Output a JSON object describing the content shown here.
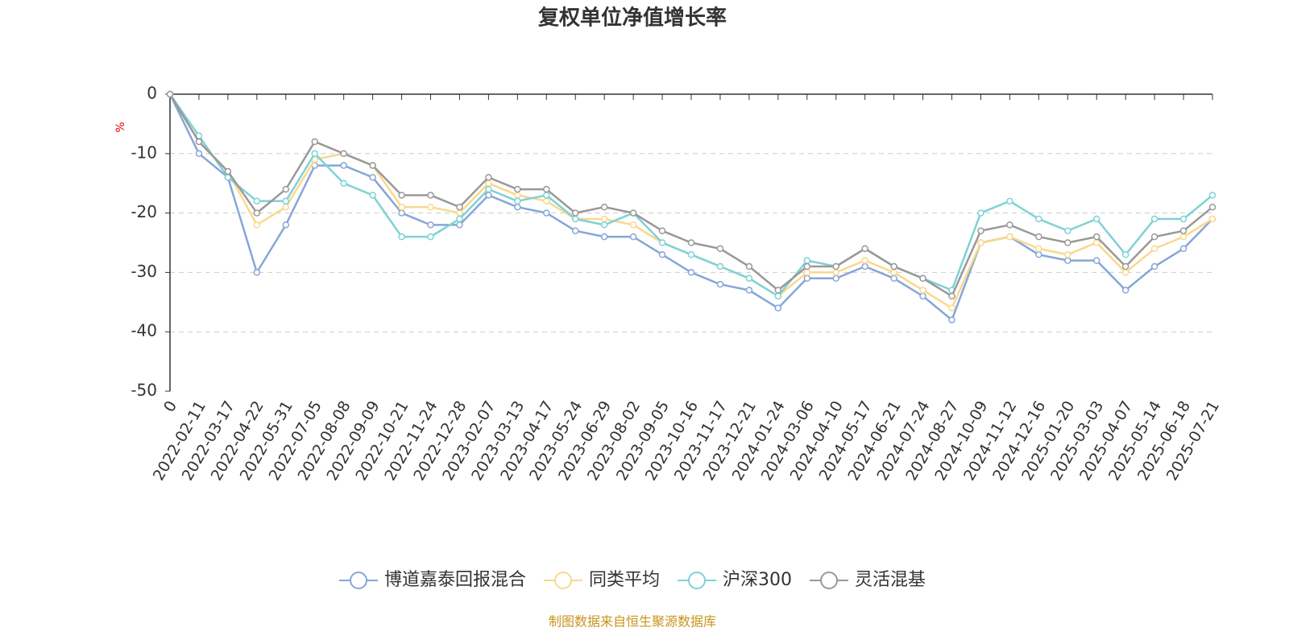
{
  "chart_data": {
    "type": "line",
    "title": "复权单位净值增长率",
    "y_label": "%",
    "source": "制图数据来自恒生聚源数据库",
    "categories": [
      "0",
      "2022-02-11",
      "2022-03-17",
      "2022-04-22",
      "2022-05-31",
      "2022-07-05",
      "2022-08-08",
      "2022-09-09",
      "2022-10-21",
      "2022-11-24",
      "2022-12-28",
      "2023-02-07",
      "2023-03-13",
      "2023-04-17",
      "2023-05-24",
      "2023-06-29",
      "2023-08-02",
      "2023-09-05",
      "2023-10-16",
      "2023-11-17",
      "2023-12-21",
      "2024-01-24",
      "2024-03-06",
      "2024-04-10",
      "2024-05-17",
      "2024-06-21",
      "2024-07-24",
      "2024-08-27",
      "2024-10-09",
      "2024-11-12",
      "2024-12-16",
      "2025-01-20",
      "2025-03-03",
      "2025-04-07",
      "2025-05-14",
      "2025-06-18",
      "2025-07-21"
    ],
    "series": [
      {
        "name": "博道嘉泰回报混合",
        "color": "#86a6d8",
        "values": [
          0,
          -10,
          -14,
          -30,
          -22,
          -12,
          -12,
          -14,
          -20,
          -22,
          -22,
          -17,
          -19,
          -20,
          -23,
          -24,
          -24,
          -27,
          -30,
          -32,
          -33,
          -36,
          -31,
          -31,
          -29,
          -31,
          -34,
          -38,
          -25,
          -24,
          -27,
          -28,
          -28,
          -33,
          -29,
          -26,
          -21
        ]
      },
      {
        "name": "同类平均",
        "color": "#fad88c",
        "values": [
          0,
          -8,
          -13,
          -22,
          -19,
          -11,
          -10,
          -12,
          -19,
          -19,
          -20,
          -15,
          -17,
          -18,
          -21,
          -21,
          -22,
          -25,
          -27,
          -29,
          -31,
          -34,
          -30,
          -30,
          -28,
          -30,
          -33,
          -36,
          -25,
          -24,
          -26,
          -27,
          -25,
          -30,
          -26,
          -24,
          -21
        ]
      },
      {
        "name": "沪深300",
        "color": "#7ed2d6",
        "values": [
          0,
          -7,
          -14,
          -18,
          -18,
          -10,
          -15,
          -17,
          -24,
          -24,
          -21,
          -16,
          -18,
          -17,
          -21,
          -22,
          -20,
          -25,
          -27,
          -29,
          -31,
          -34,
          -28,
          -29,
          -26,
          -29,
          -31,
          -33,
          -20,
          -18,
          -21,
          -23,
          -21,
          -27,
          -21,
          -21,
          -17
        ]
      },
      {
        "name": "灵活混基",
        "color": "#999999",
        "values": [
          0,
          -8,
          -13,
          -20,
          -16,
          -8,
          -10,
          -12,
          -17,
          -17,
          -19,
          -14,
          -16,
          -16,
          -20,
          -19,
          -20,
          -23,
          -25,
          -26,
          -29,
          -33,
          -29,
          -29,
          -26,
          -29,
          -31,
          -34,
          -23,
          -22,
          -24,
          -25,
          -24,
          -29,
          -24,
          -23,
          -19
        ]
      }
    ],
    "ylim": [
      -50,
      0
    ],
    "yticks": [
      0,
      -10,
      -20,
      -30,
      -40,
      -50
    ],
    "grid": true
  }
}
